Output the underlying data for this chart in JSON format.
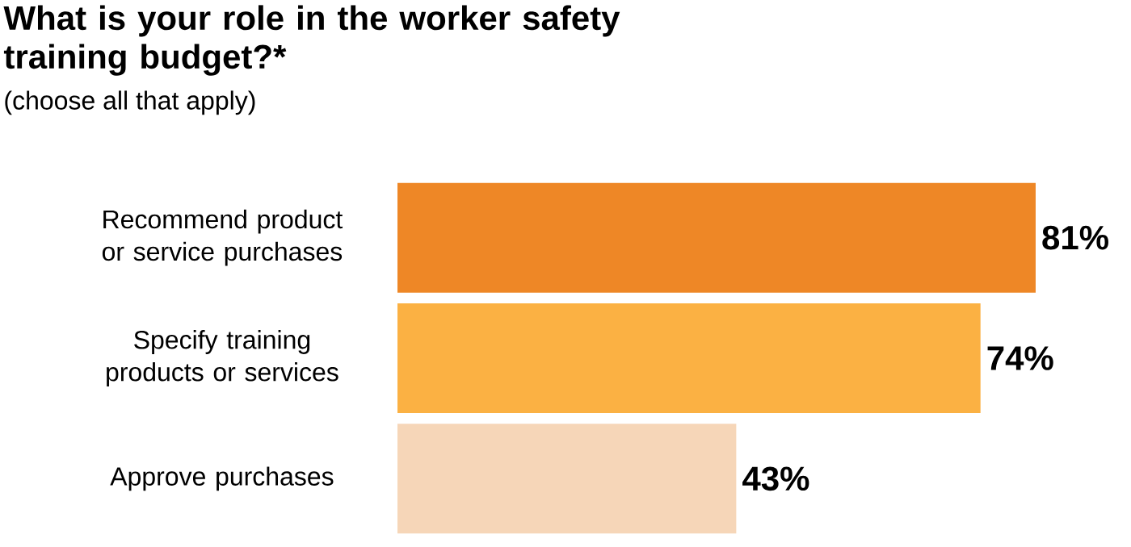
{
  "chart_data": {
    "type": "bar",
    "orientation": "horizontal",
    "title": "What is your role in the worker safety training budget?*",
    "subtitle": "(choose all that apply)",
    "categories": [
      "Recommend product or service purchases",
      "Specify training products or services",
      "Approve purchases"
    ],
    "values": [
      81,
      74,
      43
    ],
    "colors": [
      "#ee8726",
      "#fbb143",
      "#f6d6b8"
    ],
    "value_labels": [
      "81%",
      "74%",
      "43%"
    ]
  }
}
